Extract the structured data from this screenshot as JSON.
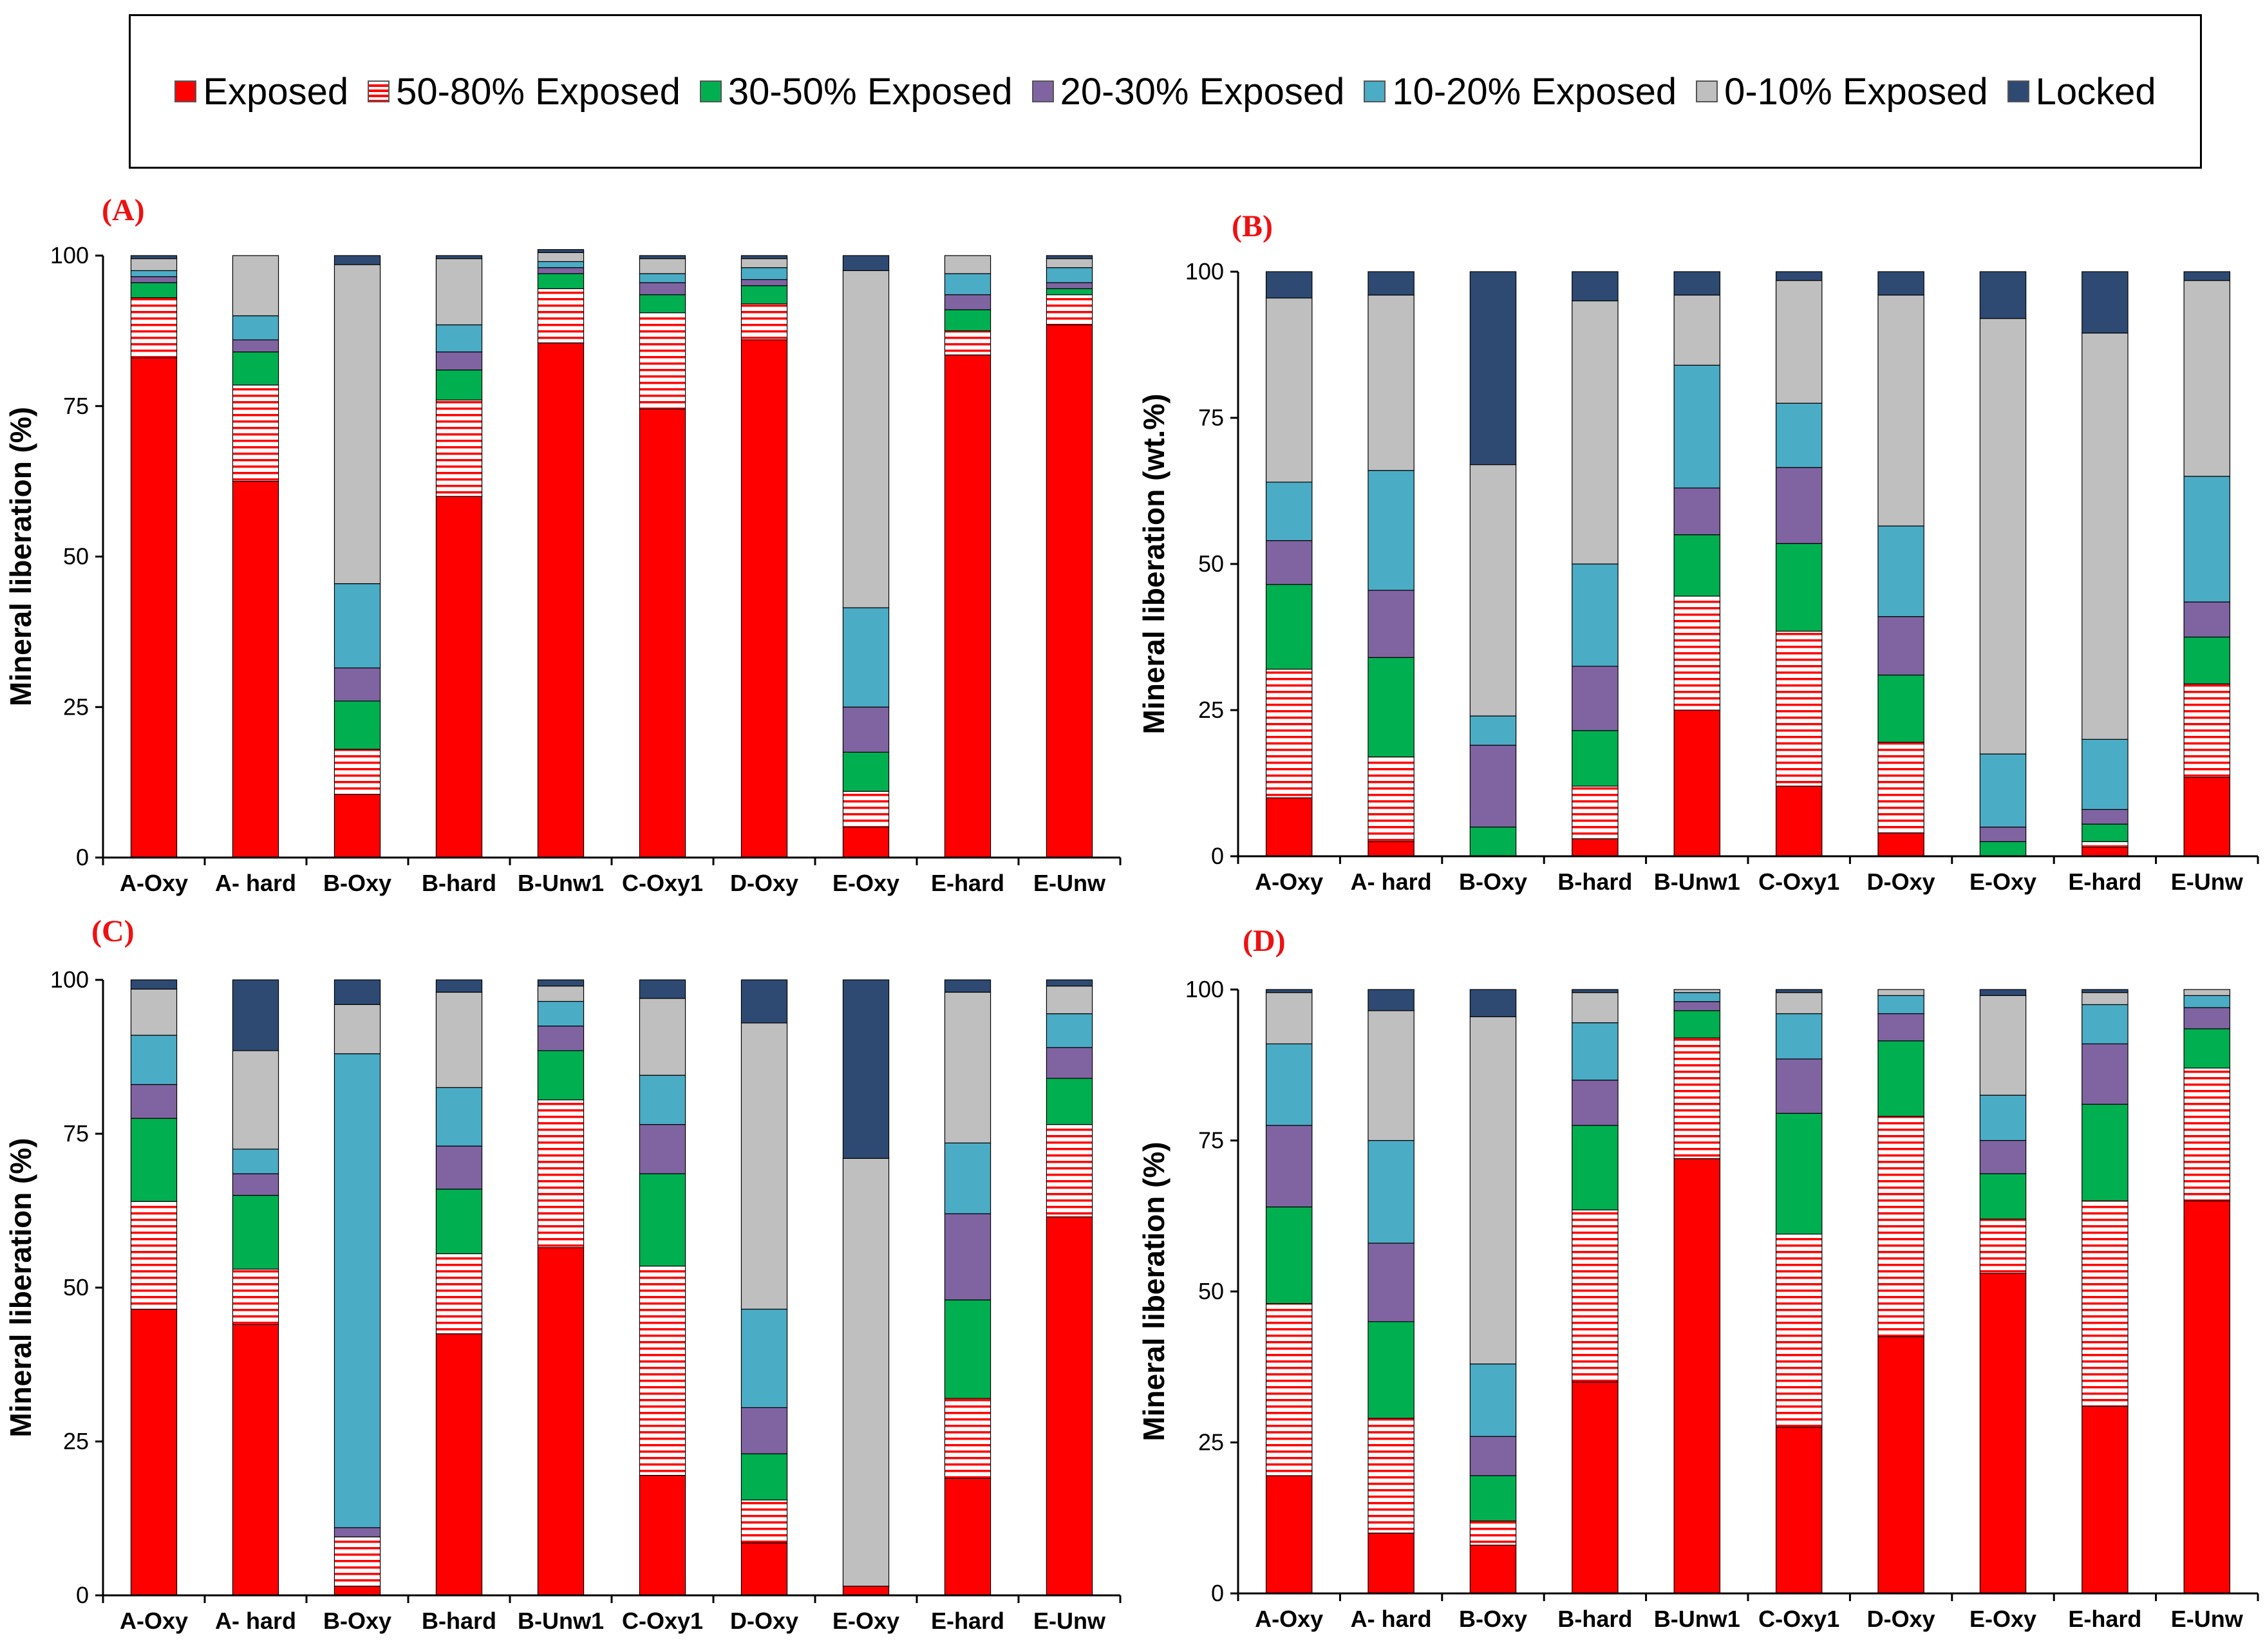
{
  "legend": {
    "items": [
      {
        "key": "exposed",
        "label": "Exposed"
      },
      {
        "key": "e5080",
        "label": "50-80% Exposed"
      },
      {
        "key": "e3050",
        "label": "30-50% Exposed"
      },
      {
        "key": "e2030",
        "label": "20-30% Exposed"
      },
      {
        "key": "e1020",
        "label": "10-20% Exposed"
      },
      {
        "key": "e010",
        "label": "0-10% Exposed"
      },
      {
        "key": "locked",
        "label": "Locked"
      }
    ]
  },
  "colors": {
    "exposed": "#ff0000",
    "e5080_stripe": "#ff0000",
    "e5080_bg": "#ffffff",
    "e3050": "#00b050",
    "e2030": "#8064a2",
    "e1020": "#4bacc6",
    "e010": "#bfbfbf",
    "locked": "#2e4a73",
    "panel_label": "#ee1111"
  },
  "chart_data": [
    {
      "panel": "(A)",
      "type": "bar",
      "stacked": true,
      "ylabel": "Mineral liberation (%)",
      "ylim": [
        0,
        100
      ],
      "yticks": [
        "0",
        "25",
        "50",
        "75",
        "100"
      ],
      "categories": [
        "A-Oxy",
        "A- hard",
        "B-Oxy",
        "B-hard",
        "B-Unw1",
        "C-Oxy1",
        "D-Oxy",
        "E-Oxy",
        "E-hard",
        "E-Unw"
      ],
      "series": [
        {
          "name": "Exposed",
          "values": [
            83,
            62.5,
            10.5,
            60,
            85.5,
            74.5,
            86,
            5,
            83.5,
            88.5
          ]
        },
        {
          "name": "50-80% Exposed",
          "values": [
            10,
            16,
            7.5,
            16,
            9,
            16,
            6,
            6,
            4,
            5
          ]
        },
        {
          "name": "30-50% Exposed",
          "values": [
            2.5,
            5.5,
            8,
            5,
            2.5,
            3,
            3,
            6.5,
            3.5,
            1
          ]
        },
        {
          "name": "20-30% Exposed",
          "values": [
            1,
            2,
            5.5,
            3,
            1,
            2,
            1,
            7.5,
            2.5,
            1
          ]
        },
        {
          "name": "10-20% Exposed",
          "values": [
            1,
            4,
            14,
            4.5,
            1,
            1.5,
            2,
            16.5,
            3.5,
            2.5
          ]
        },
        {
          "name": "0-10% Exposed",
          "values": [
            2,
            10,
            53,
            11,
            1.5,
            2.5,
            1.5,
            56,
            3,
            1.5
          ]
        },
        {
          "name": "Locked",
          "values": [
            0.5,
            0,
            1.5,
            0.5,
            0.5,
            0.5,
            0.5,
            2.5,
            0,
            0.5
          ]
        }
      ]
    },
    {
      "panel": "(B)",
      "type": "bar",
      "stacked": true,
      "ylabel": "Mineral liberation (wt.%)",
      "ylim": [
        0,
        100
      ],
      "yticks": [
        "0",
        "25",
        "50",
        "75",
        "100"
      ],
      "categories": [
        "A-Oxy",
        "A- hard",
        "B-Oxy",
        "B-hard",
        "B-Unw1",
        "C-Oxy1",
        "D-Oxy",
        "E-Oxy",
        "E-hard",
        "E-Unw"
      ],
      "series": [
        {
          "name": "Exposed",
          "values": [
            10,
            2.5,
            0,
            3,
            25,
            12,
            4,
            0,
            1.5,
            13.5
          ]
        },
        {
          "name": "50-80% Exposed",
          "values": [
            22,
            14.5,
            0,
            9,
            19.5,
            26.5,
            15.5,
            0,
            1,
            16
          ]
        },
        {
          "name": "30-50% Exposed",
          "values": [
            14.5,
            17,
            5,
            9.5,
            10.5,
            15,
            11.5,
            2.5,
            3,
            8
          ]
        },
        {
          "name": "20-30% Exposed",
          "values": [
            7.5,
            11.5,
            14,
            11,
            8,
            13,
            10,
            2.5,
            2.5,
            6
          ]
        },
        {
          "name": "10-20% Exposed",
          "values": [
            10,
            20.5,
            5,
            17.5,
            21,
            11,
            15.5,
            12.5,
            12,
            21.5
          ]
        },
        {
          "name": "0-10% Exposed",
          "values": [
            31.5,
            30,
            43,
            45,
            12,
            21,
            39.5,
            74.5,
            69.5,
            33.5
          ]
        },
        {
          "name": "Locked",
          "values": [
            4.5,
            4,
            33,
            5,
            4,
            1.5,
            4,
            8,
            10.5,
            1.5
          ]
        }
      ]
    },
    {
      "panel": "(C)",
      "type": "bar",
      "stacked": true,
      "ylabel": "Mineral liberation (%)",
      "ylim": [
        0,
        100
      ],
      "yticks": [
        "0",
        "25",
        "50",
        "75",
        "100"
      ],
      "categories": [
        "A-Oxy",
        "A- hard",
        "B-Oxy",
        "B-hard",
        "B-Unw1",
        "C-Oxy1",
        "D-Oxy",
        "E-Oxy",
        "E-hard",
        "E-Unw"
      ],
      "series": [
        {
          "name": "Exposed",
          "values": [
            46.5,
            44,
            1.5,
            42.5,
            56.5,
            19.5,
            8.5,
            1.5,
            19,
            61.5
          ]
        },
        {
          "name": "50-80% Exposed",
          "values": [
            17.5,
            9,
            8,
            13,
            24,
            34,
            7,
            0,
            13,
            15
          ]
        },
        {
          "name": "30-50% Exposed",
          "values": [
            13.5,
            12,
            0,
            10.5,
            8,
            15,
            7.5,
            0,
            16,
            7.5
          ]
        },
        {
          "name": "20-30% Exposed",
          "values": [
            5.5,
            3.5,
            1.5,
            7,
            4,
            8,
            7.5,
            0,
            14,
            5
          ]
        },
        {
          "name": "10-20% Exposed",
          "values": [
            8,
            4,
            77,
            9.5,
            4,
            8,
            16,
            0,
            11.5,
            5.5
          ]
        },
        {
          "name": "0-10% Exposed",
          "values": [
            7.5,
            16,
            8,
            15.5,
            2.5,
            12.5,
            46.5,
            69.5,
            24.5,
            4.5
          ]
        },
        {
          "name": "Locked",
          "values": [
            1.5,
            11.5,
            4,
            2,
            1,
            3,
            7,
            29,
            2,
            1
          ]
        }
      ]
    },
    {
      "panel": "(D)",
      "type": "bar",
      "stacked": true,
      "ylabel": "Mineral liberation (%)",
      "ylim": [
        0,
        100
      ],
      "yticks": [
        "0",
        "25",
        "50",
        "75",
        "100"
      ],
      "categories": [
        "A-Oxy",
        "A- hard",
        "B-Oxy",
        "B-hard",
        "B-Unw1",
        "C-Oxy1",
        "D-Oxy",
        "E-Oxy",
        "E-hard",
        "E-Unw"
      ],
      "series": [
        {
          "name": "Exposed",
          "values": [
            19.5,
            10,
            8,
            35,
            72,
            27.5,
            42.5,
            53,
            31,
            65
          ]
        },
        {
          "name": "50-80% Exposed",
          "values": [
            28.5,
            19,
            4,
            28.5,
            20,
            32,
            36.5,
            9,
            34,
            22
          ]
        },
        {
          "name": "30-50% Exposed",
          "values": [
            16,
            16,
            7.5,
            14,
            4.5,
            20,
            12.5,
            7.5,
            16,
            6.5
          ]
        },
        {
          "name": "20-30% Exposed",
          "values": [
            13.5,
            13,
            6.5,
            7.5,
            1.5,
            9,
            4.5,
            5.5,
            10,
            3.5
          ]
        },
        {
          "name": "10-20% Exposed",
          "values": [
            13.5,
            17,
            12,
            9.5,
            1.5,
            7.5,
            3,
            7.5,
            6.5,
            2
          ]
        },
        {
          "name": "0-10% Exposed",
          "values": [
            8.5,
            21.5,
            57.5,
            5,
            0.5,
            3.5,
            1,
            16.5,
            2,
            1
          ]
        },
        {
          "name": "Locked",
          "values": [
            0.5,
            3.5,
            4.5,
            0.5,
            0,
            0.5,
            0,
            1,
            0.5,
            0
          ]
        }
      ]
    }
  ]
}
